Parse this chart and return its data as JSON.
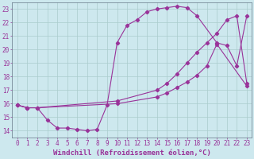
{
  "background_color": "#cde8ee",
  "line_color": "#993399",
  "grid_color": "#aacccc",
  "xlabel": "Windchill (Refroidissement éolien,°C)",
  "xlabel_fontsize": 6.5,
  "tick_fontsize": 5.5,
  "xlim": [
    -0.5,
    23.5
  ],
  "ylim": [
    13.5,
    23.5
  ],
  "yticks": [
    14,
    15,
    16,
    17,
    18,
    19,
    20,
    21,
    22,
    23
  ],
  "xticks": [
    0,
    1,
    2,
    3,
    4,
    5,
    6,
    7,
    8,
    9,
    10,
    11,
    12,
    13,
    14,
    15,
    16,
    17,
    18,
    19,
    20,
    21,
    22,
    23
  ],
  "line1_x": [
    0,
    1,
    2,
    10,
    14,
    15,
    16,
    17,
    18,
    19,
    20,
    21,
    22,
    23
  ],
  "line1_y": [
    15.9,
    15.7,
    15.7,
    16.2,
    17.0,
    17.5,
    18.2,
    19.0,
    19.8,
    20.5,
    21.2,
    22.2,
    22.5,
    17.5
  ],
  "line2_x": [
    0,
    1,
    2,
    10,
    14,
    15,
    16,
    17,
    18,
    19,
    20,
    23
  ],
  "line2_y": [
    15.9,
    15.7,
    15.7,
    16.0,
    16.5,
    16.8,
    17.2,
    17.6,
    18.1,
    18.8,
    20.4,
    17.3
  ],
  "line3_x": [
    0,
    1,
    2,
    3,
    4,
    5,
    6,
    7,
    8,
    9,
    10,
    11,
    12,
    13,
    14,
    15,
    16,
    17,
    18,
    20,
    21,
    22,
    23
  ],
  "line3_y": [
    15.9,
    15.7,
    15.7,
    14.8,
    14.2,
    14.2,
    14.1,
    14.0,
    14.1,
    15.9,
    20.5,
    21.8,
    22.2,
    22.8,
    23.0,
    23.1,
    23.2,
    23.1,
    22.5,
    20.5,
    20.3,
    18.8,
    22.5
  ]
}
